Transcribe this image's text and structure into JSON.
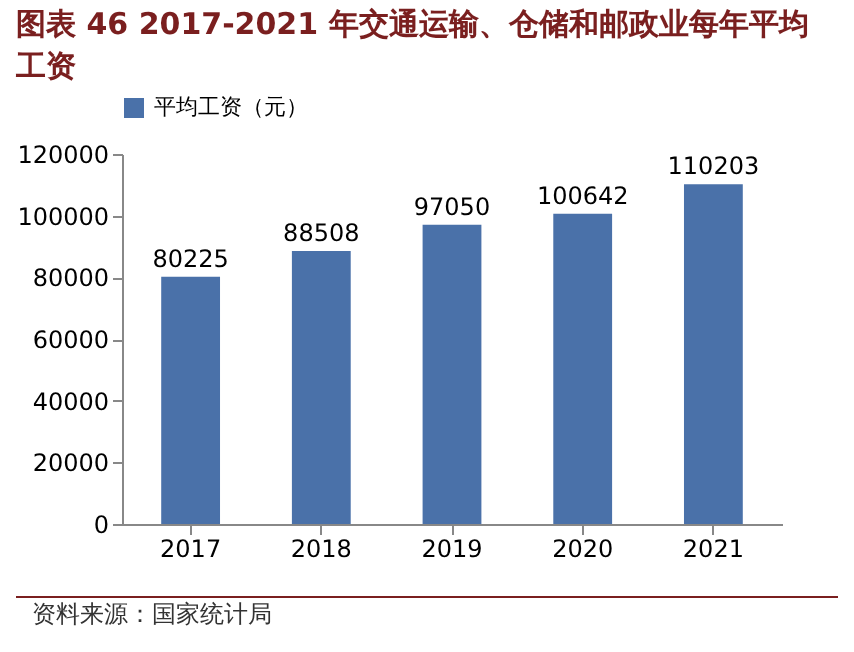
{
  "chart_data": {
    "type": "bar",
    "title": "图表 46 2017-2021 年交通运输、仓储和邮政业每年平均工资",
    "categories": [
      "2017",
      "2018",
      "2019",
      "2020",
      "2021"
    ],
    "series": [
      {
        "name": "平均工资（元）",
        "color": "#4a71a9",
        "values": [
          80225,
          88508,
          97050,
          100642,
          110203
        ]
      }
    ],
    "ylim": [
      0,
      120000
    ],
    "yticks": [
      0,
      20000,
      40000,
      60000,
      80000,
      100000,
      120000
    ],
    "data_labels": true,
    "legend": "top",
    "grid": false,
    "annotations": [
      "资料来源：国家统计局"
    ]
  }
}
